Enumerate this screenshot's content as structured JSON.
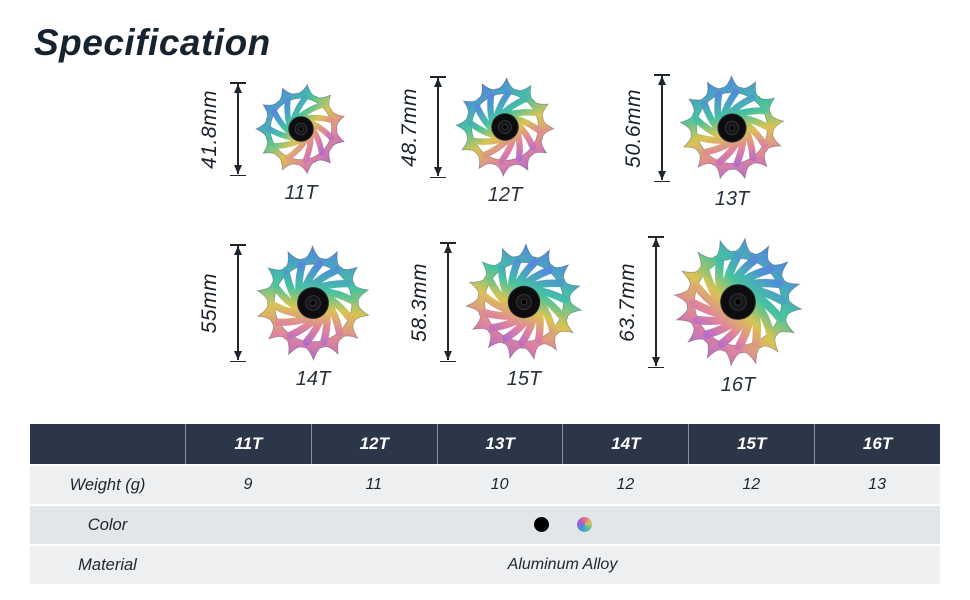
{
  "page": {
    "title": "Specification"
  },
  "wheels": [
    {
      "teeth": 11,
      "label": "11T",
      "dimension": "41.8mm"
    },
    {
      "teeth": 12,
      "label": "12T",
      "dimension": "48.7mm"
    },
    {
      "teeth": 13,
      "label": "13T",
      "dimension": "50.6mm"
    },
    {
      "teeth": 14,
      "label": "14T",
      "dimension": "55mm"
    },
    {
      "teeth": 15,
      "label": "15T",
      "dimension": "58.3mm"
    },
    {
      "teeth": 16,
      "label": "16T",
      "dimension": "63.7mm"
    }
  ],
  "table": {
    "columns": [
      "11T",
      "12T",
      "13T",
      "14T",
      "15T",
      "16T"
    ],
    "rows": [
      {
        "label": "Weight (g)",
        "type": "values",
        "values": [
          "9",
          "11",
          "10",
          "12",
          "12",
          "13"
        ]
      },
      {
        "label": "Color",
        "type": "swatches",
        "swatches": [
          "black",
          "rainbow"
        ]
      },
      {
        "label": "Material",
        "type": "span",
        "value": "Aluminum Alloy"
      }
    ]
  },
  "colors": {
    "header_bg": "#2b3648",
    "row_bg_a": "#edeff1",
    "row_bg_b": "#e3e6e9",
    "title_color": "#17242f",
    "rainbow": [
      "#9a5fd6",
      "#4d8fd8",
      "#46c3a0",
      "#d9c452",
      "#e0849c"
    ]
  }
}
